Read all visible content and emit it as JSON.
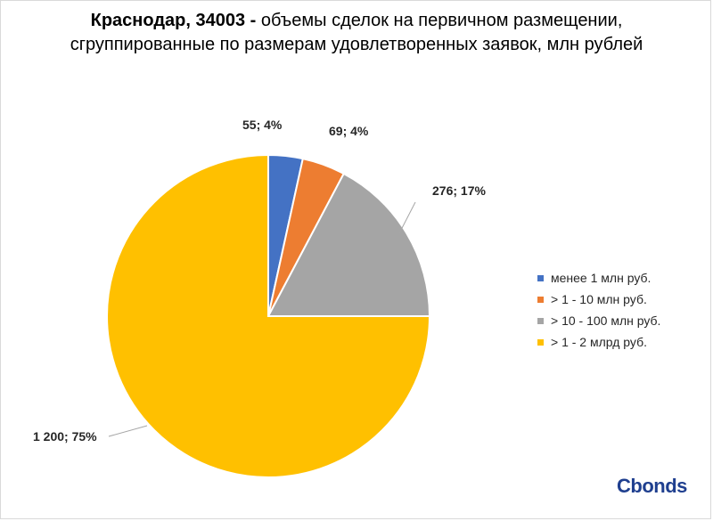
{
  "title": {
    "bold": "Краснодар, 34003 -",
    "rest": " объемы сделок на первичном размещении, сгруппированные по размерам удовлетворенных заявок, млн рублей"
  },
  "logo": "Cbonds",
  "chart_data": {
    "type": "pie",
    "categories": [
      "менее 1 млн руб.",
      "> 1 - 10 млн руб.",
      "> 10 - 100 млн руб.",
      "> 1 - 2 млрд руб."
    ],
    "values": [
      55,
      69,
      276,
      1200
    ],
    "data_labels": [
      "55; 4%",
      "69; 4%",
      "276; 17%",
      "1 200; 75%"
    ],
    "colors": [
      "#4472c4",
      "#ed7d31",
      "#a5a5a5",
      "#ffc000"
    ],
    "legend_position": "right",
    "start_angle": "top, clockwise"
  }
}
